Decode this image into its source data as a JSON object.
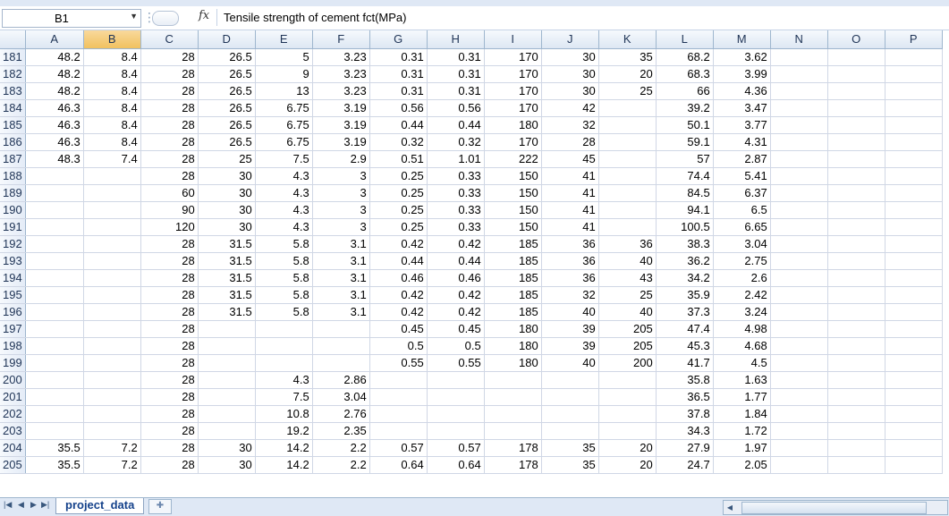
{
  "formula_bar": {
    "name_box": "B1",
    "fx_label": "fx",
    "formula": "Tensile strength of cement fct(MPa)"
  },
  "columns": [
    "A",
    "B",
    "C",
    "D",
    "E",
    "F",
    "G",
    "H",
    "I",
    "J",
    "K",
    "L",
    "M",
    "N",
    "O",
    "P"
  ],
  "selected_column": "B",
  "rows": [
    {
      "n": "181",
      "c": [
        "48.2",
        "8.4",
        "28",
        "26.5",
        "5",
        "3.23",
        "0.31",
        "0.31",
        "170",
        "30",
        "35",
        "68.2",
        "3.62"
      ]
    },
    {
      "n": "182",
      "c": [
        "48.2",
        "8.4",
        "28",
        "26.5",
        "9",
        "3.23",
        "0.31",
        "0.31",
        "170",
        "30",
        "20",
        "68.3",
        "3.99"
      ]
    },
    {
      "n": "183",
      "c": [
        "48.2",
        "8.4",
        "28",
        "26.5",
        "13",
        "3.23",
        "0.31",
        "0.31",
        "170",
        "30",
        "25",
        "66",
        "4.36"
      ]
    },
    {
      "n": "184",
      "c": [
        "46.3",
        "8.4",
        "28",
        "26.5",
        "6.75",
        "3.19",
        "0.56",
        "0.56",
        "170",
        "42",
        "",
        "39.2",
        "3.47"
      ]
    },
    {
      "n": "185",
      "c": [
        "46.3",
        "8.4",
        "28",
        "26.5",
        "6.75",
        "3.19",
        "0.44",
        "0.44",
        "180",
        "32",
        "",
        "50.1",
        "3.77"
      ]
    },
    {
      "n": "186",
      "c": [
        "46.3",
        "8.4",
        "28",
        "26.5",
        "6.75",
        "3.19",
        "0.32",
        "0.32",
        "170",
        "28",
        "",
        "59.1",
        "4.31"
      ]
    },
    {
      "n": "187",
      "c": [
        "48.3",
        "7.4",
        "28",
        "25",
        "7.5",
        "2.9",
        "0.51",
        "1.01",
        "222",
        "45",
        "",
        "57",
        "2.87"
      ]
    },
    {
      "n": "188",
      "c": [
        "",
        "",
        "28",
        "30",
        "4.3",
        "3",
        "0.25",
        "0.33",
        "150",
        "41",
        "",
        "74.4",
        "5.41"
      ]
    },
    {
      "n": "189",
      "c": [
        "",
        "",
        "60",
        "30",
        "4.3",
        "3",
        "0.25",
        "0.33",
        "150",
        "41",
        "",
        "84.5",
        "6.37"
      ]
    },
    {
      "n": "190",
      "c": [
        "",
        "",
        "90",
        "30",
        "4.3",
        "3",
        "0.25",
        "0.33",
        "150",
        "41",
        "",
        "94.1",
        "6.5"
      ]
    },
    {
      "n": "191",
      "c": [
        "",
        "",
        "120",
        "30",
        "4.3",
        "3",
        "0.25",
        "0.33",
        "150",
        "41",
        "",
        "100.5",
        "6.65"
      ]
    },
    {
      "n": "192",
      "c": [
        "",
        "",
        "28",
        "31.5",
        "5.8",
        "3.1",
        "0.42",
        "0.42",
        "185",
        "36",
        "36",
        "38.3",
        "3.04"
      ]
    },
    {
      "n": "193",
      "c": [
        "",
        "",
        "28",
        "31.5",
        "5.8",
        "3.1",
        "0.44",
        "0.44",
        "185",
        "36",
        "40",
        "36.2",
        "2.75"
      ]
    },
    {
      "n": "194",
      "c": [
        "",
        "",
        "28",
        "31.5",
        "5.8",
        "3.1",
        "0.46",
        "0.46",
        "185",
        "36",
        "43",
        "34.2",
        "2.6"
      ]
    },
    {
      "n": "195",
      "c": [
        "",
        "",
        "28",
        "31.5",
        "5.8",
        "3.1",
        "0.42",
        "0.42",
        "185",
        "32",
        "25",
        "35.9",
        "2.42"
      ]
    },
    {
      "n": "196",
      "c": [
        "",
        "",
        "28",
        "31.5",
        "5.8",
        "3.1",
        "0.42",
        "0.42",
        "185",
        "40",
        "40",
        "37.3",
        "3.24"
      ]
    },
    {
      "n": "197",
      "c": [
        "",
        "",
        "28",
        "",
        "",
        "",
        "0.45",
        "0.45",
        "180",
        "39",
        "205",
        "47.4",
        "4.98"
      ]
    },
    {
      "n": "198",
      "c": [
        "",
        "",
        "28",
        "",
        "",
        "",
        "0.5",
        "0.5",
        "180",
        "39",
        "205",
        "45.3",
        "4.68"
      ]
    },
    {
      "n": "199",
      "c": [
        "",
        "",
        "28",
        "",
        "",
        "",
        "0.55",
        "0.55",
        "180",
        "40",
        "200",
        "41.7",
        "4.5"
      ]
    },
    {
      "n": "200",
      "c": [
        "",
        "",
        "28",
        "",
        "4.3",
        "2.86",
        "",
        "",
        "",
        "",
        "",
        "35.8",
        "1.63"
      ]
    },
    {
      "n": "201",
      "c": [
        "",
        "",
        "28",
        "",
        "7.5",
        "3.04",
        "",
        "",
        "",
        "",
        "",
        "36.5",
        "1.77"
      ]
    },
    {
      "n": "202",
      "c": [
        "",
        "",
        "28",
        "",
        "10.8",
        "2.76",
        "",
        "",
        "",
        "",
        "",
        "37.8",
        "1.84"
      ]
    },
    {
      "n": "203",
      "c": [
        "",
        "",
        "28",
        "",
        "19.2",
        "2.35",
        "",
        "",
        "",
        "",
        "",
        "34.3",
        "1.72"
      ]
    },
    {
      "n": "204",
      "c": [
        "35.5",
        "7.2",
        "28",
        "30",
        "14.2",
        "2.2",
        "0.57",
        "0.57",
        "178",
        "35",
        "20",
        "27.9",
        "1.97"
      ]
    },
    {
      "n": "205",
      "c": [
        "35.5",
        "7.2",
        "28",
        "30",
        "14.2",
        "2.2",
        "0.64",
        "0.64",
        "178",
        "35",
        "20",
        "24.7",
        "2.05"
      ]
    }
  ],
  "sheet_tab": "project_data"
}
